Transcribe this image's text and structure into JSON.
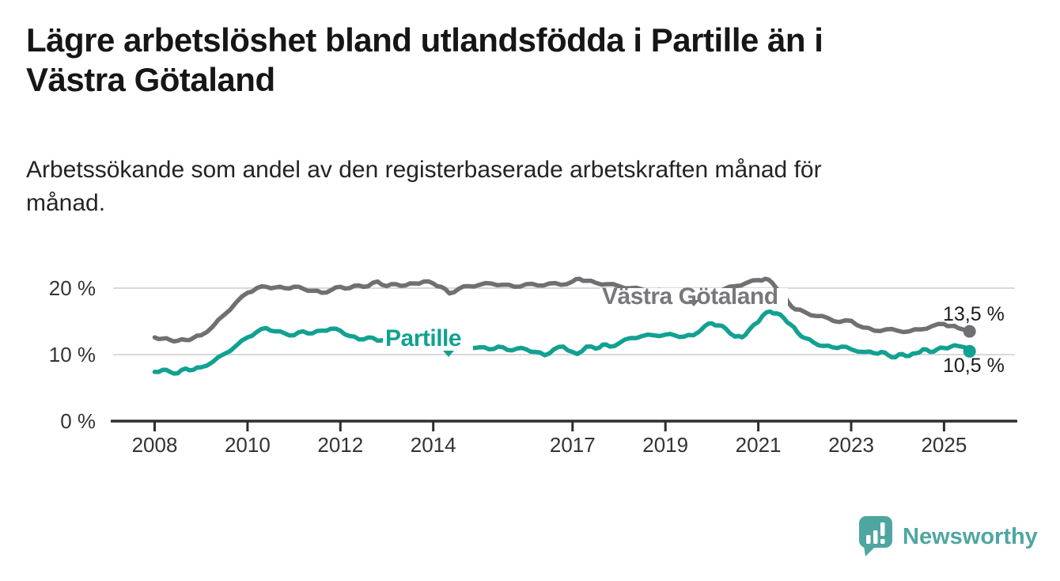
{
  "header": {
    "title": "Lägre arbetslöshet bland utlandsfödda i Partille än i\nVästra Götaland",
    "subtitle": "Arbetssökande som andel av den registerbaserade arbetskraften månad för\nmånad."
  },
  "chart_data": {
    "type": "line",
    "title": "Lägre arbetslöshet bland utlandsfödda i Partille än i Västra Götaland",
    "subtitle": "Arbetssökande som andel av den registerbaserade arbetskraften månad för månad.",
    "unit": "%",
    "grid": "horizontal",
    "legend_position": "inline-labels",
    "xlim": [
      2007.1,
      2026.6
    ],
    "ylim": [
      0,
      24
    ],
    "x_ticks": [
      {
        "year": 2008,
        "label": "2008"
      },
      {
        "year": 2010,
        "label": "2010"
      },
      {
        "year": 2012,
        "label": "2012"
      },
      {
        "year": 2014,
        "label": "2014"
      },
      {
        "year": 2017,
        "label": "2017"
      },
      {
        "year": 2019,
        "label": "2019"
      },
      {
        "year": 2021,
        "label": "2021"
      },
      {
        "year": 2023,
        "label": "2023"
      },
      {
        "year": 2025,
        "label": "2025"
      }
    ],
    "y_ticks": [
      {
        "value": 0,
        "label": "0 %"
      },
      {
        "value": 10,
        "label": "10 %"
      },
      {
        "value": 20,
        "label": "20 %"
      }
    ],
    "series": [
      {
        "name": "Västra Götaland",
        "color": "#6f6f74",
        "end_label": "13,5 %",
        "end_value": 13.5,
        "points": [
          [
            2008.0,
            12.6
          ],
          [
            2008.17,
            12.4
          ],
          [
            2008.33,
            12.2
          ],
          [
            2008.5,
            12.1
          ],
          [
            2008.67,
            12.2
          ],
          [
            2008.83,
            12.5
          ],
          [
            2009.0,
            12.9
          ],
          [
            2009.25,
            14.2
          ],
          [
            2009.5,
            16.0
          ],
          [
            2009.75,
            17.8
          ],
          [
            2010.0,
            19.3
          ],
          [
            2010.2,
            20.0
          ],
          [
            2010.4,
            20.2
          ],
          [
            2010.6,
            20.1
          ],
          [
            2010.8,
            20.0
          ],
          [
            2011.0,
            20.2
          ],
          [
            2011.2,
            19.9
          ],
          [
            2011.4,
            19.6
          ],
          [
            2011.6,
            19.3
          ],
          [
            2011.8,
            19.7
          ],
          [
            2012.0,
            20.2
          ],
          [
            2012.2,
            20.0
          ],
          [
            2012.4,
            20.4
          ],
          [
            2012.6,
            20.3
          ],
          [
            2012.8,
            21.0
          ],
          [
            2013.0,
            20.3
          ],
          [
            2013.2,
            20.6
          ],
          [
            2013.4,
            20.4
          ],
          [
            2013.6,
            20.7
          ],
          [
            2013.8,
            21.0
          ],
          [
            2014.0,
            20.7
          ],
          [
            2014.17,
            20.2
          ],
          [
            2014.35,
            19.2
          ],
          [
            2014.55,
            19.9
          ],
          [
            2014.75,
            20.3
          ],
          [
            2015.0,
            20.5
          ],
          [
            2015.25,
            20.7
          ],
          [
            2015.5,
            20.5
          ],
          [
            2015.75,
            20.2
          ],
          [
            2016.0,
            20.6
          ],
          [
            2016.25,
            20.4
          ],
          [
            2016.5,
            20.7
          ],
          [
            2016.75,
            20.5
          ],
          [
            2017.0,
            21.0
          ],
          [
            2017.15,
            21.4
          ],
          [
            2017.3,
            21.1
          ],
          [
            2017.5,
            20.8
          ],
          [
            2017.75,
            20.6
          ],
          [
            2018.0,
            20.3
          ],
          [
            2018.25,
            20.0
          ],
          [
            2018.5,
            19.8
          ],
          [
            2018.75,
            19.6
          ],
          [
            2019.0,
            19.5
          ],
          [
            2019.25,
            19.3
          ],
          [
            2019.5,
            19.2
          ],
          [
            2019.75,
            19.0
          ],
          [
            2020.0,
            19.2
          ],
          [
            2020.25,
            19.8
          ],
          [
            2020.5,
            20.3
          ],
          [
            2020.75,
            20.8
          ],
          [
            2021.0,
            21.2
          ],
          [
            2021.15,
            21.4
          ],
          [
            2021.3,
            20.8
          ],
          [
            2021.5,
            19.3
          ],
          [
            2021.65,
            17.8
          ],
          [
            2021.8,
            16.8
          ],
          [
            2022.0,
            16.4
          ],
          [
            2022.25,
            15.8
          ],
          [
            2022.5,
            15.5
          ],
          [
            2022.75,
            14.9
          ],
          [
            2023.0,
            15.1
          ],
          [
            2023.25,
            14.1
          ],
          [
            2023.5,
            13.6
          ],
          [
            2023.75,
            13.8
          ],
          [
            2024.0,
            13.6
          ],
          [
            2024.25,
            13.5
          ],
          [
            2024.5,
            13.8
          ],
          [
            2024.75,
            14.3
          ],
          [
            2025.0,
            14.6
          ],
          [
            2025.15,
            14.3
          ],
          [
            2025.3,
            14.0
          ],
          [
            2025.45,
            13.7
          ],
          [
            2025.55,
            13.5
          ]
        ]
      },
      {
        "name": "Partille",
        "color": "#12a191",
        "end_label": "10,5 %",
        "end_value": 10.5,
        "points": [
          [
            2008.0,
            7.4
          ],
          [
            2008.17,
            7.7
          ],
          [
            2008.33,
            7.4
          ],
          [
            2008.5,
            7.2
          ],
          [
            2008.67,
            7.9
          ],
          [
            2008.83,
            7.7
          ],
          [
            2009.0,
            8.1
          ],
          [
            2009.25,
            8.9
          ],
          [
            2009.5,
            10.1
          ],
          [
            2009.75,
            11.3
          ],
          [
            2010.0,
            12.6
          ],
          [
            2010.2,
            13.4
          ],
          [
            2010.4,
            14.0
          ],
          [
            2010.6,
            13.5
          ],
          [
            2010.8,
            13.2
          ],
          [
            2011.0,
            12.9
          ],
          [
            2011.2,
            13.5
          ],
          [
            2011.4,
            13.2
          ],
          [
            2011.6,
            13.6
          ],
          [
            2011.8,
            13.9
          ],
          [
            2012.0,
            13.6
          ],
          [
            2012.2,
            12.8
          ],
          [
            2012.4,
            12.3
          ],
          [
            2012.6,
            12.6
          ],
          [
            2012.8,
            12.1
          ],
          [
            2013.0,
            12.5
          ],
          [
            2013.25,
            12.6
          ],
          [
            2013.5,
            12.3
          ],
          [
            2013.75,
            12.1
          ],
          [
            2014.0,
            11.9
          ],
          [
            2014.25,
            11.7
          ],
          [
            2014.5,
            11.4
          ],
          [
            2014.75,
            11.2
          ],
          [
            2015.0,
            11.1
          ],
          [
            2015.2,
            10.8
          ],
          [
            2015.4,
            11.2
          ],
          [
            2015.6,
            10.7
          ],
          [
            2015.8,
            10.9
          ],
          [
            2016.0,
            10.8
          ],
          [
            2016.2,
            10.4
          ],
          [
            2016.4,
            9.9
          ],
          [
            2016.6,
            10.8
          ],
          [
            2016.8,
            11.2
          ],
          [
            2017.0,
            10.4
          ],
          [
            2017.1,
            10.1
          ],
          [
            2017.3,
            11.2
          ],
          [
            2017.5,
            10.9
          ],
          [
            2017.65,
            11.5
          ],
          [
            2017.8,
            11.2
          ],
          [
            2018.0,
            11.7
          ],
          [
            2018.25,
            12.5
          ],
          [
            2018.5,
            12.8
          ],
          [
            2018.75,
            12.9
          ],
          [
            2019.0,
            13.0
          ],
          [
            2019.2,
            12.9
          ],
          [
            2019.4,
            12.7
          ],
          [
            2019.6,
            12.9
          ],
          [
            2019.85,
            14.3
          ],
          [
            2020.0,
            14.7
          ],
          [
            2020.15,
            14.4
          ],
          [
            2020.3,
            13.9
          ],
          [
            2020.5,
            12.7
          ],
          [
            2020.65,
            12.6
          ],
          [
            2020.8,
            13.7
          ],
          [
            2021.0,
            14.9
          ],
          [
            2021.1,
            15.9
          ],
          [
            2021.25,
            16.5
          ],
          [
            2021.4,
            16.2
          ],
          [
            2021.55,
            15.5
          ],
          [
            2021.7,
            14.5
          ],
          [
            2021.85,
            13.3
          ],
          [
            2022.0,
            12.5
          ],
          [
            2022.2,
            11.8
          ],
          [
            2022.4,
            11.3
          ],
          [
            2022.6,
            11.1
          ],
          [
            2022.8,
            11.2
          ],
          [
            2023.0,
            10.8
          ],
          [
            2023.3,
            10.4
          ],
          [
            2023.5,
            10.2
          ],
          [
            2023.65,
            10.4
          ],
          [
            2023.8,
            9.9
          ],
          [
            2023.95,
            9.6
          ],
          [
            2024.1,
            10.1
          ],
          [
            2024.25,
            9.8
          ],
          [
            2024.4,
            10.2
          ],
          [
            2024.55,
            10.8
          ],
          [
            2024.7,
            10.4
          ],
          [
            2024.85,
            10.8
          ],
          [
            2025.0,
            11.0
          ],
          [
            2025.15,
            11.2
          ],
          [
            2025.3,
            11.3
          ],
          [
            2025.45,
            11.1
          ],
          [
            2025.55,
            10.5
          ]
        ]
      }
    ]
  },
  "colors": {
    "background": "#ffffff",
    "gridline": "#d9d9d9",
    "axis": "#2e2e2e",
    "tick_text": "#333333",
    "title_text": "#161616",
    "subtitle_text": "#242424",
    "value_text": "#1b1b1b",
    "series_gray": "#6f6f74",
    "series_teal": "#12a191",
    "brand_teal": "#4fa6a1"
  },
  "footer": {
    "brand": "Newsworthy"
  }
}
